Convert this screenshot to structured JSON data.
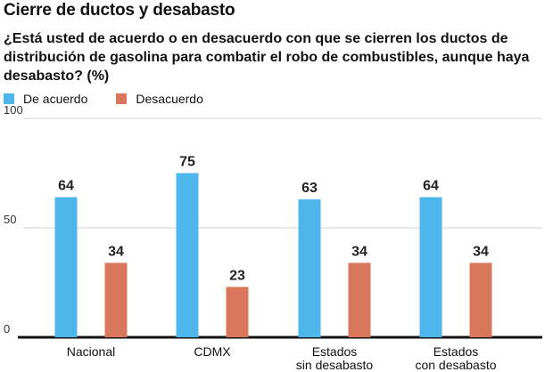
{
  "title": "Cierre de ductos y desabasto",
  "subtitle": "¿Está usted de acuerdo o en desacuerdo con que se cierren los ductos de distribución de gasolina para combatir el robo de combustibles, aunque haya desabasto? (%)",
  "colors": {
    "acuerdo": "#4db6ea",
    "desacuerdo": "#d9775c"
  },
  "chart_data": {
    "type": "bar",
    "title": "Cierre de ductos y desabasto",
    "subtitle": "¿Está usted de acuerdo o en desacuerdo con que se cierren los ductos de distribución de gasolina para combatir el robo de combustibles, aunque haya desabasto? (%)",
    "categories": [
      [
        "Nacional"
      ],
      [
        "CDMX"
      ],
      [
        "Estados",
        "sin desabasto"
      ],
      [
        "Estados",
        "con desabasto"
      ]
    ],
    "series": [
      {
        "name": "De acuerdo",
        "values": [
          64,
          75,
          63,
          64
        ],
        "color": "#4db6ea"
      },
      {
        "name": "Desacuerdo",
        "values": [
          34,
          23,
          34,
          34
        ],
        "color": "#d9775c"
      }
    ],
    "yticks": [
      0,
      50,
      100
    ],
    "ylim": [
      0,
      100
    ],
    "grid": true,
    "legend": "top-left"
  }
}
